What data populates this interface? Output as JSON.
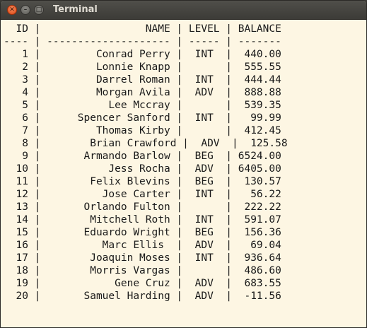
{
  "window": {
    "title": "Terminal"
  },
  "titlebar_buttons": {
    "close": "✕",
    "minimize": "–",
    "maximize": "□"
  },
  "colors": {
    "terminal_background": "#fdf6e3",
    "terminal_text": "#1a1a1a",
    "titlebar": "#3c3b37",
    "close_button": "#df4a16"
  },
  "terminal": {
    "lines": [
      "  ID |                 NAME | LEVEL | BALANCE",
      "---- | -------------------- | ----- | -------",
      "   1 |         Conrad Perry |  INT  |  440.00",
      "   2 |         Lonnie Knapp |       |  555.55",
      "   3 |         Darrel Roman |  INT  |  444.44",
      "   4 |         Morgan Avila |  ADV  |  888.88",
      "   5 |           Lee Mccray |       |  539.35",
      "   6 |      Spencer Sanford |  INT  |   99.99",
      "   7 |         Thomas Kirby |       |  412.45",
      "   8 |        Brian Crawford |  ADV  |  125.58",
      "   9 |       Armando Barlow |  BEG  | 6524.00",
      "  10 |           Jess Rocha |  ADV  | 6405.00",
      "  11 |        Felix Blevins |  BEG  |  130.57",
      "  12 |          Jose Carter |  INT  |   56.22",
      "  13 |       Orlando Fulton |       |  222.22",
      "  14 |        Mitchell Roth |  INT  |  591.07",
      "  15 |       Eduardo Wright |  BEG  |  156.36",
      "  16 |          Marc Ellis  |  ADV  |   69.04",
      "  17 |        Joaquin Moses |  INT  |  936.64",
      "  18 |        Morris Vargas |       |  486.60",
      "  19 |            Gene Cruz |  ADV  |  683.55",
      "  20 |       Samuel Harding |  ADV  |  -11.56"
    ]
  }
}
